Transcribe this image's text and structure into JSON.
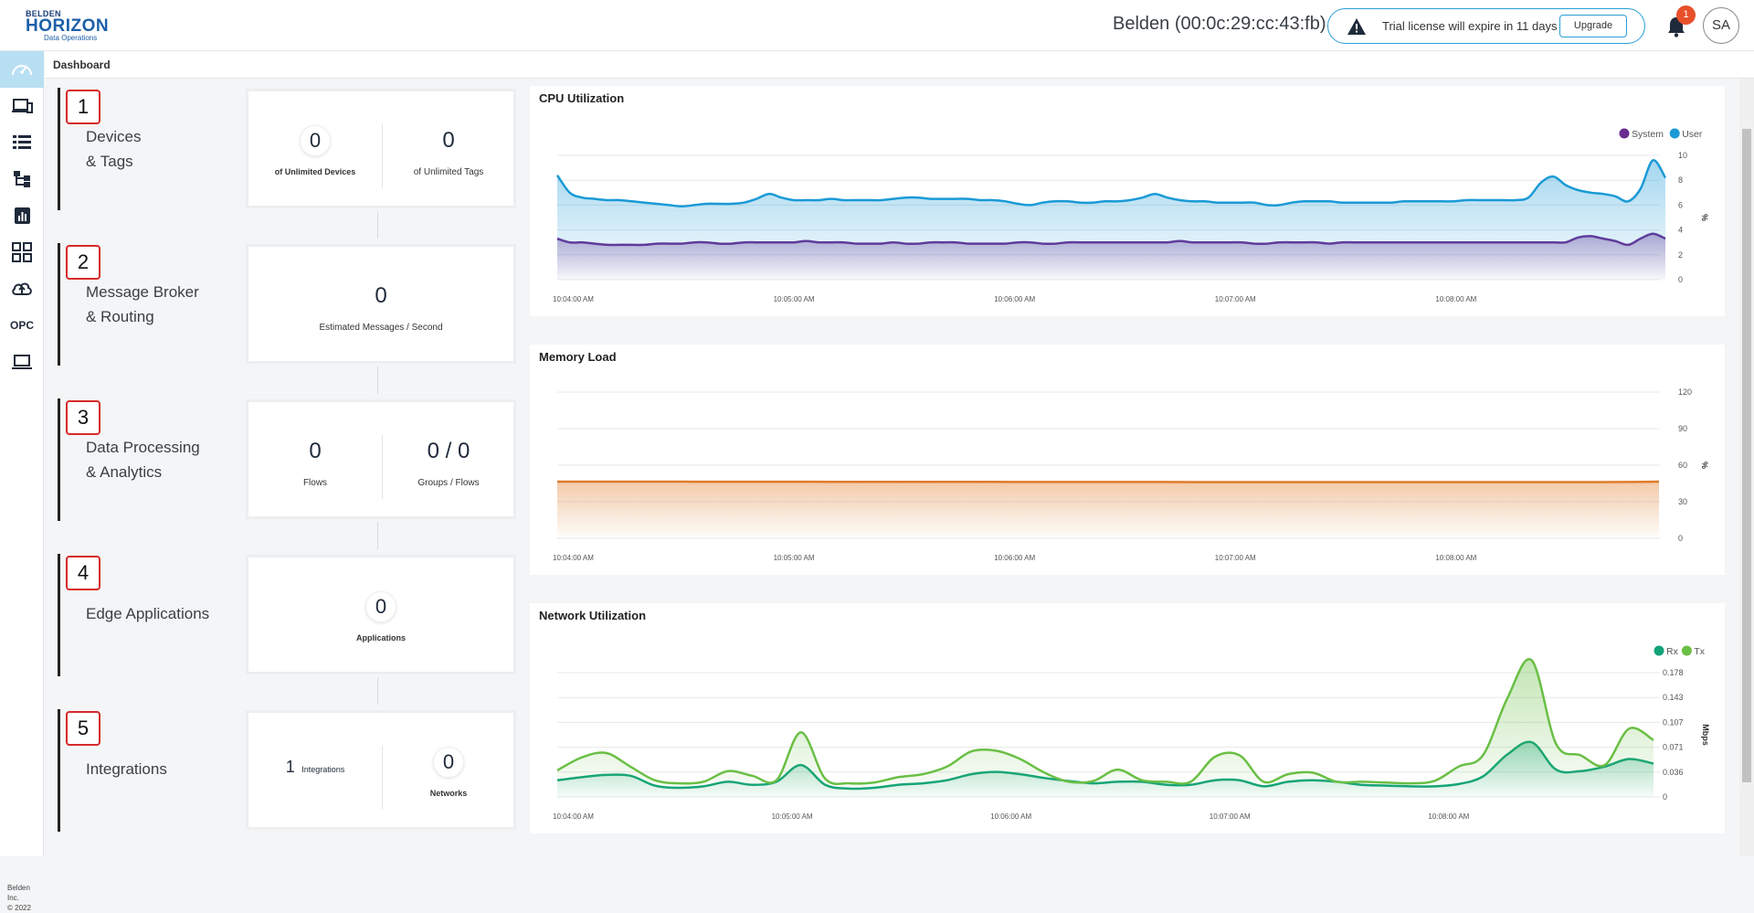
{
  "brand": {
    "line1": "BELDEN",
    "line2": "HORIZON",
    "line3": "Data Operations"
  },
  "header": {
    "device_title": "Belden (00:0c:29:cc:43:fb)",
    "license_message": "Trial license will expire in 11 days",
    "upgrade_label": "Upgrade",
    "notification_count": "1",
    "avatar_initials": "SA"
  },
  "sidebar": {
    "items": [
      {
        "icon": "speedometer-icon",
        "active": true
      },
      {
        "icon": "devices-icon"
      },
      {
        "icon": "list-icon"
      },
      {
        "icon": "hierarchy-icon"
      },
      {
        "icon": "bar-chart-icon"
      },
      {
        "icon": "grid-icon"
      },
      {
        "icon": "cloud-upload-icon"
      },
      {
        "icon": "opc-icon",
        "label": "OPC"
      },
      {
        "icon": "laptop-icon"
      }
    ],
    "copyright_line1": "Belden Inc.",
    "copyright_line2": "© 2022"
  },
  "breadcrumb": "Dashboard",
  "steps": [
    {
      "number": "1",
      "label_line1": "Devices",
      "label_line2": "& Tags",
      "metrics": [
        {
          "value": "0",
          "label": "of Unlimited Devices"
        },
        {
          "value": "0",
          "label": "of Unlimited Tags"
        }
      ]
    },
    {
      "number": "2",
      "label_line1": "Message Broker",
      "label_line2": "& Routing",
      "metrics": [
        {
          "value": "0",
          "label": "Estimated Messages / Second"
        }
      ]
    },
    {
      "number": "3",
      "label_line1": "Data Processing",
      "label_line2": "& Analytics",
      "metrics": [
        {
          "value": "0",
          "label": "Flows"
        },
        {
          "value": "0 / 0",
          "label": "Groups / Flows"
        }
      ]
    },
    {
      "number": "4",
      "label_line1": "Edge Applications",
      "label_line2": "",
      "metrics": [
        {
          "value": "0",
          "label": "Applications"
        }
      ]
    },
    {
      "number": "5",
      "label_line1": "Integrations",
      "label_line2": "",
      "metrics": [
        {
          "value": "1",
          "label": "Integrations"
        },
        {
          "value": "0",
          "label": "Networks"
        }
      ]
    }
  ],
  "colors": {
    "cpu_system": "#6a2c91",
    "cpu_user": "#1a9ad6",
    "memory": "#e07b2a",
    "net_rx": "#12a37a",
    "net_tx": "#6abf45",
    "accent": "#2a9fd6",
    "badge": "#e8502a"
  },
  "chart_data": [
    {
      "type": "area",
      "title": "CPU Utilization",
      "ylabel": "%",
      "ylim": [
        0,
        10
      ],
      "yticks": [
        "10",
        "8",
        "6",
        "4",
        "2",
        "0"
      ],
      "xticks": [
        "10:04:00 AM",
        "10:05:00 AM",
        "10:06:00 AM",
        "10:07:00 AM",
        "10:08:00 AM"
      ],
      "legend_position": "top-right",
      "series": [
        {
          "name": "System",
          "color": "#6a2c91",
          "values": [
            3.3,
            3.0,
            3.0,
            2.9,
            2.8,
            2.8,
            2.8,
            2.8,
            2.9,
            2.9,
            2.9,
            3.0,
            3.0,
            2.9,
            2.9,
            3.0,
            3.0,
            3.0,
            3.0,
            3.0,
            3.1,
            3.0,
            3.0,
            3.0,
            2.9,
            2.9,
            2.9,
            3.0,
            2.9,
            2.9,
            3.0,
            3.0,
            3.0,
            2.9,
            2.9,
            2.9,
            2.9,
            3.0,
            3.0,
            2.9,
            2.9,
            3.0,
            3.0,
            3.0,
            3.0,
            3.0,
            3.0,
            3.0,
            3.0,
            3.0,
            3.1,
            3.0,
            3.0,
            3.0,
            3.0,
            3.0,
            2.9,
            2.9,
            3.0,
            3.0,
            3.0,
            3.0,
            2.9,
            3.0,
            3.0,
            3.0,
            3.0,
            3.0,
            3.0,
            3.0,
            3.0,
            3.0,
            3.0,
            3.0,
            3.0,
            3.0,
            3.0,
            3.0,
            3.0,
            3.0,
            3.0,
            3.0,
            3.4,
            3.5,
            3.3,
            3.1,
            2.8,
            3.3,
            3.7,
            3.3
          ]
        },
        {
          "name": "User",
          "color": "#1a9ad6",
          "values": [
            8.4,
            7.0,
            6.6,
            6.5,
            6.4,
            6.4,
            6.3,
            6.2,
            6.1,
            6.0,
            5.9,
            6.0,
            6.1,
            6.1,
            6.1,
            6.2,
            6.5,
            6.9,
            6.6,
            6.4,
            6.4,
            6.4,
            6.5,
            6.4,
            6.4,
            6.4,
            6.4,
            6.5,
            6.6,
            6.6,
            6.5,
            6.5,
            6.5,
            6.5,
            6.4,
            6.4,
            6.3,
            6.1,
            6.0,
            6.2,
            6.3,
            6.3,
            6.2,
            6.2,
            6.3,
            6.3,
            6.4,
            6.6,
            6.9,
            6.6,
            6.4,
            6.3,
            6.3,
            6.2,
            6.2,
            6.2,
            6.2,
            6.0,
            6.0,
            6.2,
            6.3,
            6.3,
            6.3,
            6.2,
            6.2,
            6.2,
            6.2,
            6.2,
            6.3,
            6.3,
            6.3,
            6.3,
            6.3,
            6.4,
            6.4,
            6.4,
            6.4,
            6.4,
            6.6,
            7.8,
            8.3,
            7.6,
            7.2,
            7.0,
            6.9,
            6.7,
            6.3,
            7.3,
            9.6,
            8.2
          ]
        }
      ]
    },
    {
      "type": "area",
      "title": "Memory Load",
      "ylabel": "%",
      "ylim": [
        0,
        120
      ],
      "yticks": [
        "120",
        "90",
        "60",
        "30",
        "0"
      ],
      "xticks": [
        "10:04:00 AM",
        "10:05:00 AM",
        "10:06:00 AM",
        "10:07:00 AM",
        "10:08:00 AM"
      ],
      "series": [
        {
          "color": "#e07b2a",
          "values": [
            46.5,
            46.5,
            46.5,
            46.5,
            46.5,
            46.4,
            46.4,
            46.4,
            46.4,
            46.4,
            46.3,
            46.3,
            46.3,
            46.3,
            46.3,
            46.3,
            46.3,
            46.2,
            46.2,
            46.2,
            46.2,
            46.2,
            46.2,
            46.1,
            46.1,
            46.1,
            46.1,
            46.1,
            46.1,
            46.1,
            46.1,
            46.1,
            46.1,
            46.1,
            46.1,
            46.1,
            46.1,
            46.1,
            46.1,
            46.2,
            46.5
          ]
        }
      ]
    },
    {
      "type": "area",
      "title": "Network Utilization",
      "ylabel": "Mbps",
      "ylim": [
        0,
        0.2
      ],
      "yticks": [
        "0.178",
        "0.143",
        "0.107",
        "0.071",
        "0.036",
        "0"
      ],
      "xticks": [
        "10:04:00 AM",
        "10:05:00 AM",
        "10:06:00 AM",
        "10:07:00 AM",
        "10:08:00 AM"
      ],
      "legend_position": "top-right",
      "series": [
        {
          "name": "Rx",
          "color": "#12a37a",
          "values": [
            0.022,
            0.026,
            0.029,
            0.028,
            0.015,
            0.012,
            0.014,
            0.02,
            0.016,
            0.02,
            0.042,
            0.016,
            0.011,
            0.012,
            0.016,
            0.018,
            0.022,
            0.03,
            0.033,
            0.03,
            0.025,
            0.021,
            0.018,
            0.02,
            0.02,
            0.016,
            0.016,
            0.022,
            0.022,
            0.014,
            0.02,
            0.022,
            0.02,
            0.016,
            0.015,
            0.014,
            0.014,
            0.017,
            0.027,
            0.056,
            0.072,
            0.036,
            0.034,
            0.04,
            0.05,
            0.044
          ]
        },
        {
          "name": "Tx",
          "color": "#6abf45",
          "values": [
            0.035,
            0.052,
            0.058,
            0.04,
            0.022,
            0.018,
            0.02,
            0.034,
            0.028,
            0.022,
            0.085,
            0.024,
            0.018,
            0.019,
            0.026,
            0.03,
            0.04,
            0.06,
            0.061,
            0.05,
            0.032,
            0.02,
            0.021,
            0.036,
            0.022,
            0.02,
            0.02,
            0.053,
            0.055,
            0.02,
            0.03,
            0.032,
            0.02,
            0.02,
            0.019,
            0.018,
            0.021,
            0.04,
            0.055,
            0.13,
            0.18,
            0.07,
            0.055,
            0.042,
            0.09,
            0.075
          ]
        }
      ]
    }
  ]
}
